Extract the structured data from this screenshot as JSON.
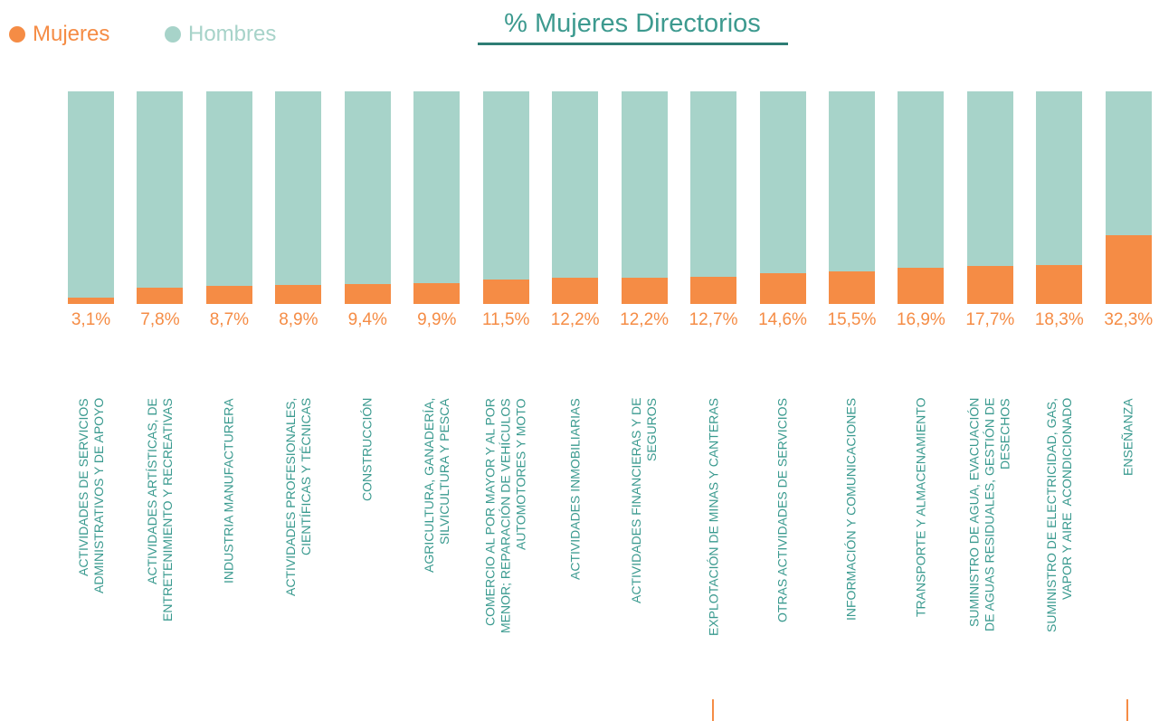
{
  "chart_data": {
    "type": "stacked_bar_100",
    "title": "% Mujeres Directorios",
    "categories": [
      "ACTIVIDADES DE SERVICIOS\nADMINISTRATIVOS Y DE APOYO",
      "ACTIVIDADES ARTÍSTICAS, DE\nENTRETENIMIENTO Y RECREATIVAS",
      "INDUSTRIA MANUFACTURERA",
      "ACTIVIDADES PROFESIONALES,\nCIENTÍFICAS Y TÉCNICAS",
      "CONSTRUCCIÓN",
      "AGRICULTURA, GANADERÍA,\nSILVICULTURA Y PESCA",
      "COMERCIO AL POR MAYOR Y AL POR\nMENOR; REPARACIÓN DE VEHÍCULOS\nAUTOMOTORES Y MOTO",
      "ACTIVIDADES INMOBILIARIAS",
      "ACTIVIDADES FINANCIERAS Y DE\nSEGUROS",
      "EXPLOTACIÓN DE MINAS Y CANTERAS",
      "OTRAS ACTIVIDADES DE SERVICIOS",
      "INFORMACIÓN Y COMUNICACIONES",
      "TRANSPORTE Y ALMACENAMIENTO",
      "SUMINISTRO DE AGUA, EVACUACIÓN\nDE AGUAS RESIDUALES, GESTIÓN DE\nDESECHOS",
      "SUMINISTRO DE ELECTRICIDAD, GAS,\nVAPOR Y AIRE  ACONDICIONADO",
      "ENSEÑANZA"
    ],
    "series": [
      {
        "name": "Mujeres",
        "color": "#f58c45",
        "values": [
          3.1,
          7.8,
          8.7,
          8.9,
          9.4,
          9.9,
          11.5,
          12.2,
          12.2,
          12.7,
          14.6,
          15.5,
          16.9,
          17.7,
          18.3,
          32.3
        ],
        "value_labels": [
          "3,1%",
          "7,8%",
          "8,7%",
          "8,9%",
          "9,4%",
          "9,9%",
          "11,5%",
          "12,2%",
          "12,2%",
          "12,7%",
          "14,6%",
          "15,5%",
          "16,9%",
          "17,7%",
          "18,3%",
          "32,3%"
        ]
      },
      {
        "name": "Hombres",
        "color": "#a7d3c9",
        "values": [
          96.9,
          92.2,
          91.3,
          91.1,
          90.6,
          90.1,
          88.5,
          87.8,
          87.8,
          87.3,
          85.4,
          84.5,
          83.1,
          82.3,
          81.7,
          67.7
        ]
      }
    ],
    "ylim": [
      0,
      100
    ],
    "legend": "top-left"
  }
}
